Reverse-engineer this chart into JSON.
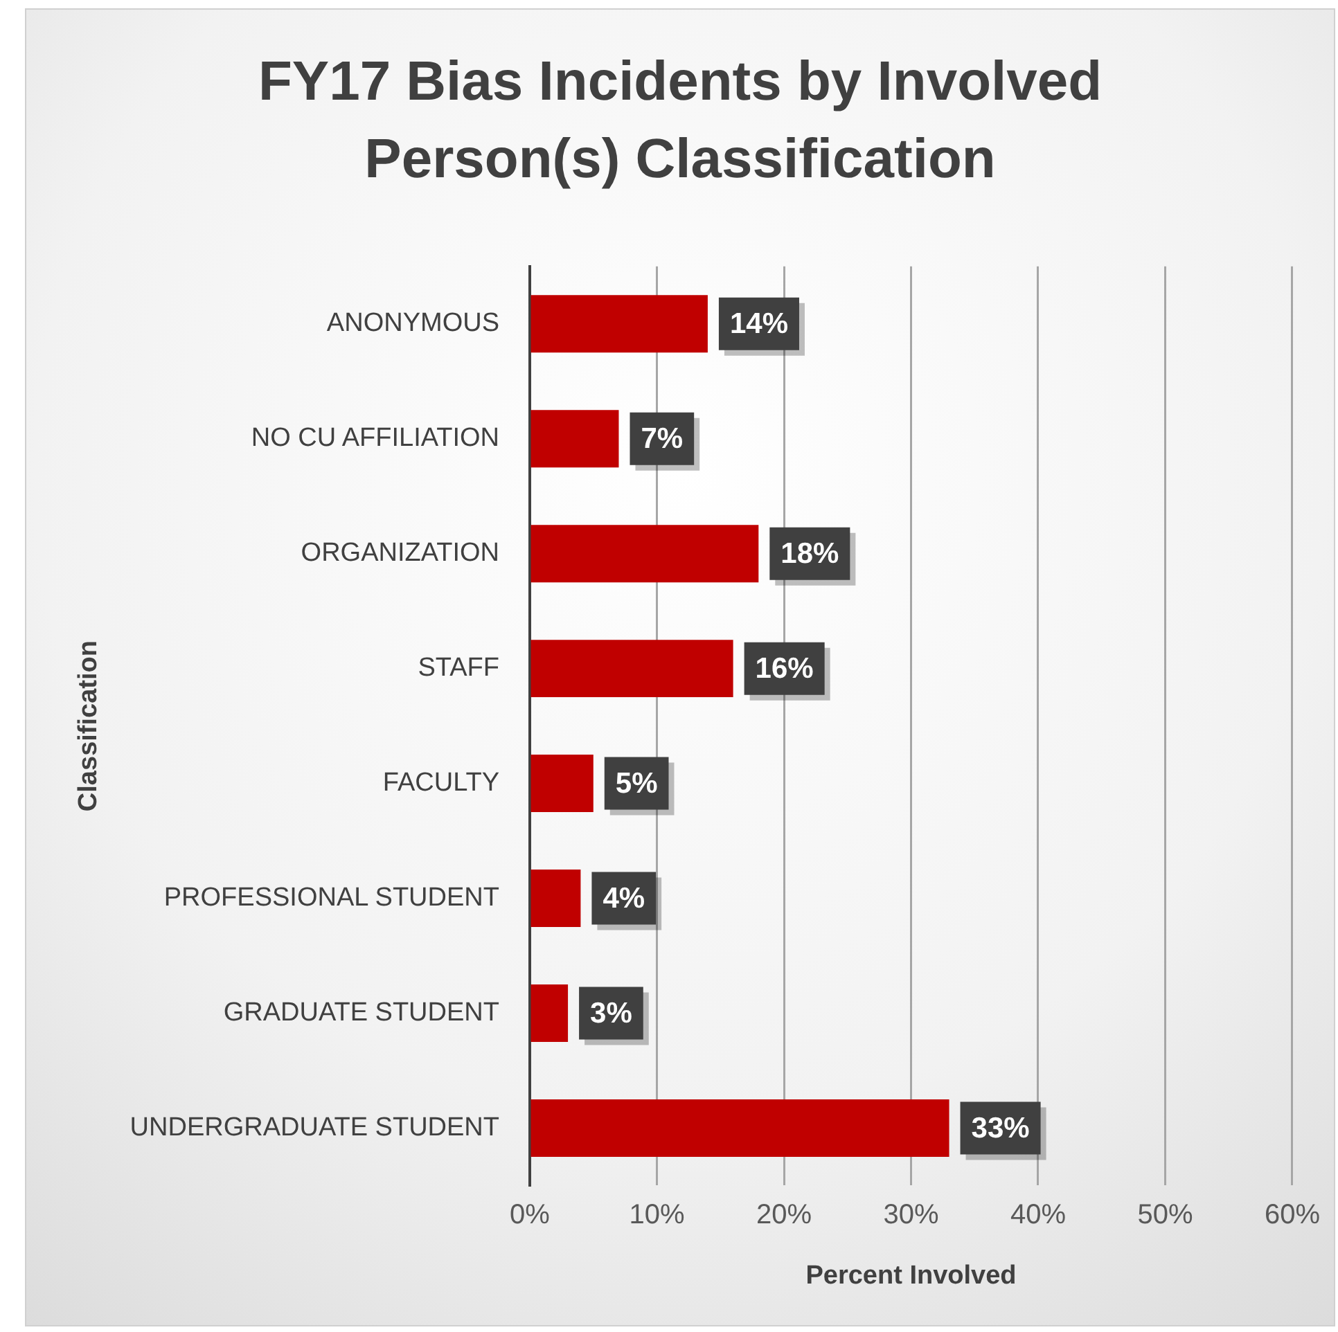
{
  "chart_data": {
    "type": "bar",
    "orientation": "horizontal",
    "title": "FY17 Bias Incidents by Involved Person(s) Classification",
    "xlabel": "Percent Involved",
    "ylabel": "Classification",
    "categories": [
      "ANONYMOUS",
      "NO CU AFFILIATION",
      "ORGANIZATION",
      "STAFF",
      "FACULTY",
      "PROFESSIONAL STUDENT",
      "GRADUATE STUDENT",
      "UNDERGRADUATE STUDENT"
    ],
    "values": [
      14,
      7,
      18,
      16,
      5,
      4,
      3,
      33
    ],
    "value_labels": [
      "14%",
      "7%",
      "18%",
      "16%",
      "5%",
      "4%",
      "3%",
      "33%"
    ],
    "color": "#c00000",
    "xlim": [
      0,
      60
    ],
    "xticks": [
      {
        "value": 0,
        "label": "0%"
      },
      {
        "value": 10,
        "label": "10%"
      },
      {
        "value": 20,
        "label": "20%"
      },
      {
        "value": 30,
        "label": "30%"
      },
      {
        "value": 40,
        "label": "40%"
      },
      {
        "value": 50,
        "label": "50%"
      },
      {
        "value": 60,
        "label": "60%"
      }
    ],
    "grid": "x",
    "legend": false
  }
}
